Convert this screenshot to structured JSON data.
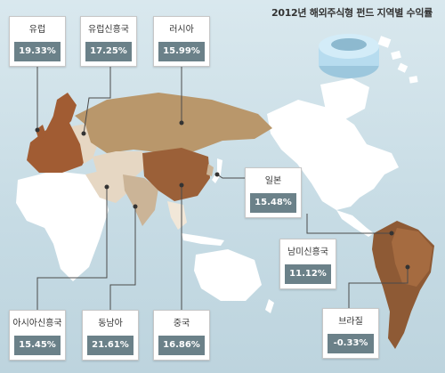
{
  "title": "2012년 해외주식형 펀드 지역별 수익률",
  "colors": {
    "ocean": "#c6dbe4",
    "land": "#ffffff",
    "europe": "#a15c33",
    "russia": "#b9976b",
    "china": "#9b6038",
    "india": "#cbb497",
    "south_america": "#8e5a35",
    "box_value": "#6b8189"
  },
  "regions": [
    {
      "name": "유럽",
      "value": "19.33%"
    },
    {
      "name": "유럽신흥국",
      "value": "17.25%"
    },
    {
      "name": "러시아",
      "value": "15.99%"
    },
    {
      "name": "일본",
      "value": "15.48%"
    },
    {
      "name": "남미신흥국",
      "value": "11.12%"
    },
    {
      "name": "아시아신흥국",
      "value": "15.45%"
    },
    {
      "name": "동남아",
      "value": "21.61%"
    },
    {
      "name": "중국",
      "value": "16.86%"
    },
    {
      "name": "브라질",
      "value": "-0.33%"
    }
  ]
}
